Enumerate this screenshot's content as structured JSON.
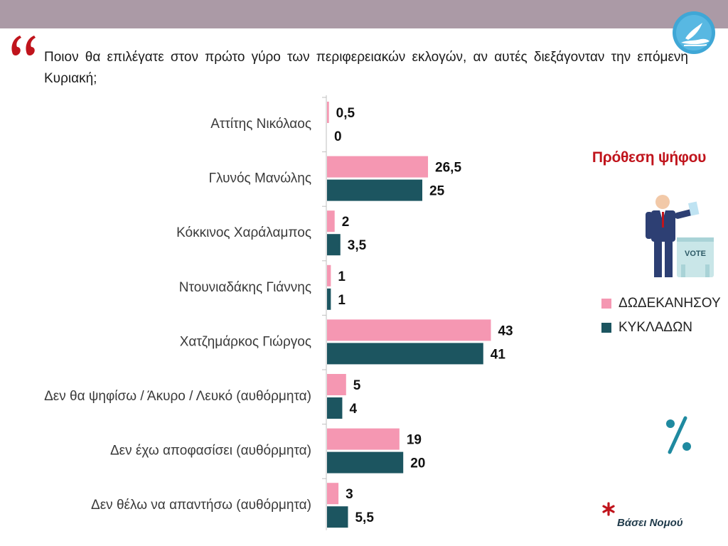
{
  "question": "Ποιον θα επιλέγατε στον πρώτο γύρο των περιφερειακών εκλογών, αν αυτές διεξάγονταν την επόμενη Κυριακή;",
  "intent_title": "Πρόθεση ψήφου",
  "vote_box_label": "VOTE",
  "note": "Βάσει Νομού",
  "colors": {
    "band": "#ab9aa6",
    "series_dodecanese": "#f597b2",
    "series_cyclades": "#1c5560",
    "accent_red": "#c0141c",
    "teal_icon": "#1f8aa0"
  },
  "chart_data": {
    "type": "bar",
    "orientation": "horizontal",
    "title": "",
    "xlabel": "",
    "ylabel": "",
    "xlim": [
      0,
      50
    ],
    "grid": false,
    "legend_position": "right",
    "categories": [
      "Αττίτης Νικόλαος",
      "Γλυνός Μανώλης",
      "Κόκκινος Χαράλαμπος",
      "Ντουνιαδάκης Γιάννης",
      "Χατζημάρκος Γιώργος",
      "Δεν θα ψηφίσω / Άκυρο / Λευκό (αυθόρμητα)",
      "Δεν έχω αποφασίσει (αυθόρμητα)",
      "Δεν θέλω να απαντήσω (αυθόρμητα)"
    ],
    "series": [
      {
        "name": "ΔΩΔΕΚΑΝΗΣΟΥ",
        "color": "#f597b2",
        "values": [
          0.5,
          26.5,
          2,
          1,
          43,
          5,
          19,
          3
        ],
        "labels": [
          "0,5",
          "26,5",
          "2",
          "1",
          "43",
          "5",
          "19",
          "3"
        ]
      },
      {
        "name": "ΚΥΚΛΑΔΩΝ",
        "color": "#1c5560",
        "values": [
          0,
          25,
          3.5,
          1,
          41,
          4,
          20,
          5.5
        ],
        "labels": [
          "0",
          "25",
          "3,5",
          "1",
          "41",
          "4",
          "20",
          "5,5"
        ]
      }
    ]
  }
}
